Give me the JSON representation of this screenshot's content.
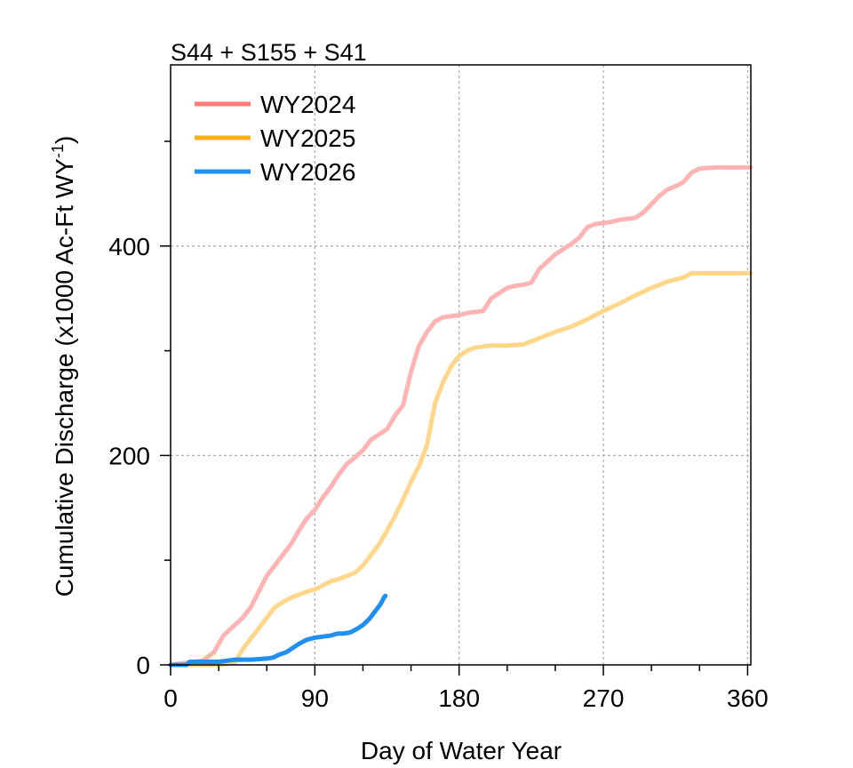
{
  "chart_data": {
    "type": "line",
    "title": "S44 + S155 + S41",
    "xlabel": "Day of Water Year",
    "ylabel_main": "Cumulative Discharge (x1000 Ac-Ft WY",
    "ylabel_sup": "-1",
    "ylabel_close": ")",
    "xlim": [
      0,
      362
    ],
    "ylim": [
      0,
      573
    ],
    "x_ticks": [
      0,
      90,
      180,
      270,
      360
    ],
    "x_minor_ticks": [
      30,
      60,
      120,
      150,
      210,
      240,
      300,
      330
    ],
    "y_ticks": [
      0,
      200,
      400
    ],
    "y_minor_ticks": [
      100,
      300,
      500
    ],
    "grid": true,
    "legend_position": "top-left",
    "series": [
      {
        "name": "WY2024",
        "color": "#ffb3b3",
        "legend_color": "#ff7a7a",
        "points": [
          [
            0,
            0
          ],
          [
            10,
            2
          ],
          [
            20,
            4
          ],
          [
            27,
            12
          ],
          [
            30,
            20
          ],
          [
            33,
            28
          ],
          [
            40,
            38
          ],
          [
            45,
            45
          ],
          [
            50,
            55
          ],
          [
            55,
            70
          ],
          [
            60,
            85
          ],
          [
            65,
            95
          ],
          [
            70,
            105
          ],
          [
            75,
            115
          ],
          [
            80,
            128
          ],
          [
            85,
            140
          ],
          [
            90,
            148
          ],
          [
            95,
            160
          ],
          [
            100,
            170
          ],
          [
            105,
            182
          ],
          [
            110,
            192
          ],
          [
            115,
            198
          ],
          [
            120,
            205
          ],
          [
            125,
            215
          ],
          [
            130,
            220
          ],
          [
            135,
            225
          ],
          [
            140,
            238
          ],
          [
            145,
            248
          ],
          [
            150,
            280
          ],
          [
            155,
            305
          ],
          [
            160,
            318
          ],
          [
            165,
            328
          ],
          [
            170,
            332
          ],
          [
            175,
            333
          ],
          [
            180,
            334
          ],
          [
            185,
            336
          ],
          [
            190,
            337
          ],
          [
            195,
            338
          ],
          [
            200,
            350
          ],
          [
            205,
            355
          ],
          [
            210,
            360
          ],
          [
            215,
            362
          ],
          [
            220,
            363
          ],
          [
            225,
            365
          ],
          [
            230,
            378
          ],
          [
            235,
            385
          ],
          [
            240,
            392
          ],
          [
            245,
            397
          ],
          [
            250,
            402
          ],
          [
            255,
            408
          ],
          [
            260,
            418
          ],
          [
            265,
            421
          ],
          [
            270,
            422
          ],
          [
            275,
            423
          ],
          [
            280,
            425
          ],
          [
            285,
            426
          ],
          [
            290,
            427
          ],
          [
            295,
            432
          ],
          [
            300,
            440
          ],
          [
            305,
            448
          ],
          [
            310,
            454
          ],
          [
            315,
            457
          ],
          [
            320,
            461
          ],
          [
            325,
            470
          ],
          [
            330,
            474
          ],
          [
            340,
            475
          ],
          [
            362,
            475
          ]
        ]
      },
      {
        "name": "WY2025",
        "color": "#ffd68a",
        "legend_color": "#ffae1a",
        "points": [
          [
            0,
            0
          ],
          [
            30,
            0
          ],
          [
            40,
            2
          ],
          [
            45,
            15
          ],
          [
            50,
            25
          ],
          [
            55,
            35
          ],
          [
            60,
            45
          ],
          [
            65,
            55
          ],
          [
            70,
            60
          ],
          [
            75,
            64
          ],
          [
            80,
            67
          ],
          [
            85,
            70
          ],
          [
            90,
            72
          ],
          [
            95,
            76
          ],
          [
            100,
            80
          ],
          [
            105,
            82
          ],
          [
            110,
            85
          ],
          [
            115,
            88
          ],
          [
            120,
            95
          ],
          [
            125,
            105
          ],
          [
            130,
            115
          ],
          [
            135,
            128
          ],
          [
            140,
            142
          ],
          [
            145,
            158
          ],
          [
            150,
            175
          ],
          [
            155,
            190
          ],
          [
            160,
            210
          ],
          [
            165,
            250
          ],
          [
            170,
            270
          ],
          [
            175,
            285
          ],
          [
            180,
            295
          ],
          [
            185,
            300
          ],
          [
            190,
            303
          ],
          [
            195,
            304
          ],
          [
            200,
            305
          ],
          [
            210,
            305
          ],
          [
            220,
            306
          ],
          [
            230,
            312
          ],
          [
            240,
            318
          ],
          [
            250,
            323
          ],
          [
            260,
            330
          ],
          [
            270,
            338
          ],
          [
            280,
            345
          ],
          [
            290,
            353
          ],
          [
            300,
            360
          ],
          [
            310,
            366
          ],
          [
            320,
            370
          ],
          [
            325,
            374
          ],
          [
            330,
            374
          ],
          [
            362,
            374
          ]
        ]
      },
      {
        "name": "WY2026",
        "color": "#1f8ff0",
        "legend_color": "#1f8ff0",
        "points": [
          [
            0,
            0
          ],
          [
            10,
            0
          ],
          [
            12,
            3
          ],
          [
            20,
            3
          ],
          [
            30,
            3
          ],
          [
            35,
            4
          ],
          [
            40,
            5
          ],
          [
            50,
            5
          ],
          [
            60,
            6
          ],
          [
            64,
            7
          ],
          [
            68,
            10
          ],
          [
            72,
            12
          ],
          [
            76,
            16
          ],
          [
            80,
            20
          ],
          [
            85,
            24
          ],
          [
            90,
            26
          ],
          [
            95,
            27
          ],
          [
            100,
            28
          ],
          [
            104,
            30
          ],
          [
            108,
            30
          ],
          [
            112,
            31
          ],
          [
            116,
            34
          ],
          [
            120,
            38
          ],
          [
            124,
            44
          ],
          [
            128,
            52
          ],
          [
            131,
            58
          ],
          [
            133,
            64
          ],
          [
            134,
            66
          ]
        ]
      }
    ]
  }
}
